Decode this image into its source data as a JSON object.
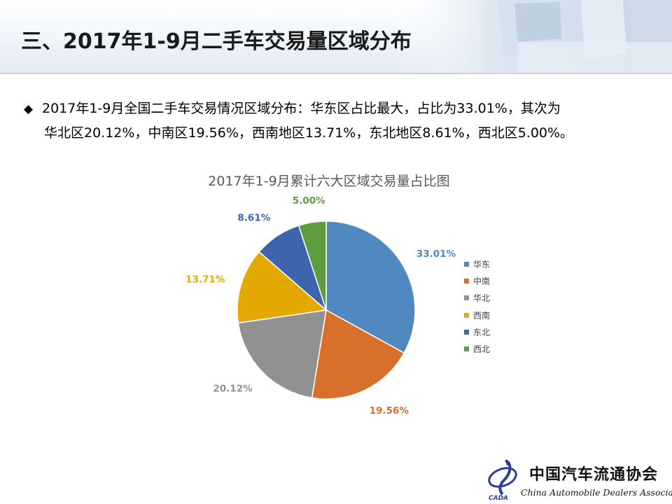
{
  "slide": {
    "title": "三、2017年1-9月二手车交易量区域分布",
    "bullet_icon": "diamond-bullet-icon",
    "bullet_line1": "2017年1-9月全国二手车交易情况区域分布：华东区占比最大，占比为33.01%，其次为",
    "bullet_line2": "华北区20.12%，中南区19.56%，西南地区13.71%，东北地区8.61%，西北区5.00%。"
  },
  "chart_data": {
    "type": "pie",
    "title": "2017年1-9月累计六大区域交易量占比图",
    "categories": [
      "华东",
      "中南",
      "华北",
      "西南",
      "东北",
      "西北"
    ],
    "values": [
      33.01,
      19.56,
      20.12,
      13.71,
      8.61,
      5.0
    ],
    "data_labels": [
      "33.01%",
      "19.56%",
      "20.12%",
      "13.71%",
      "8.61%",
      "5.00%"
    ],
    "colors": [
      "#4f89c0",
      "#d8702b",
      "#919191",
      "#e3a900",
      "#3d64ad",
      "#5e9c3f"
    ],
    "legend_position": "right"
  },
  "logo": {
    "name_cn": "中国汽车流通协会",
    "name_en": "China Automobile Dealers Association",
    "mark_text": "CADA"
  }
}
